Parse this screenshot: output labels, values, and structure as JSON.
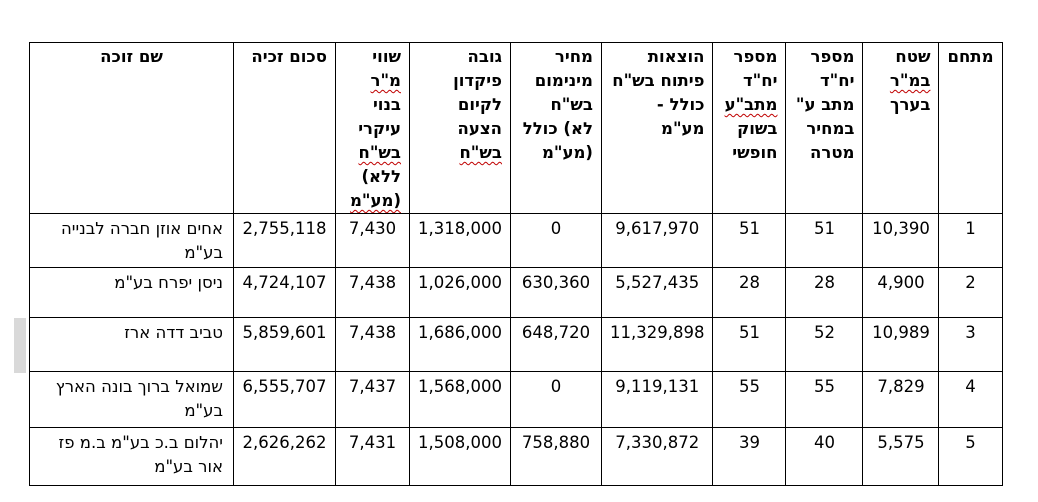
{
  "headers": {
    "area": "מתחם",
    "land_size": "שטח במ\"ר בערך",
    "units_target": "מספר יח\"ד מתב ע\" במחיר מטרה",
    "units_free": "מספר יח\"ד מתב\"ע בשוק חופשי",
    "dev_costs": "הוצאות פיתוח בש\"ח כולל - מע\"מ",
    "min_price": "מחיר מינימום בש\"ח לא) כולל (מע\"מ",
    "deposit": "גובה פיקדון לקיום הצעה בש\"ח",
    "sqm_value": "שווי מ\"ר בנוי עיקרי בש\"ח ללא) (מע\"מ",
    "win_amount": "סכום זכיה",
    "winner": "שם זוכה"
  },
  "rows": [
    {
      "area": "1",
      "land_size": "10,390",
      "units_target": "51",
      "units_free": "51",
      "dev_costs": "9,617,970",
      "min_price": "0",
      "deposit": "1,318,000",
      "sqm_value": "7,430",
      "win_amount": "2,755,118",
      "winner": "אחים אוזן חברה לבנייה בע\"מ"
    },
    {
      "area": "2",
      "land_size": "4,900",
      "units_target": "28",
      "units_free": "28",
      "dev_costs": "5,527,435",
      "min_price": "630,360",
      "deposit": "1,026,000",
      "sqm_value": "7,438",
      "win_amount": "4,724,107",
      "winner": "ניסן יפרח בע\"מ"
    },
    {
      "area": "3",
      "land_size": "10,989",
      "units_target": "52",
      "units_free": "51",
      "dev_costs": "11,329,898",
      "min_price": "648,720",
      "deposit": "1,686,000",
      "sqm_value": "7,438",
      "win_amount": "5,859,601",
      "winner": "טביב דדה ארז"
    },
    {
      "area": "4",
      "land_size": "7,829",
      "units_target": "55",
      "units_free": "55",
      "dev_costs": "9,119,131",
      "min_price": "0",
      "deposit": "1,568,000",
      "sqm_value": "7,437",
      "win_amount": "6,555,707",
      "winner": "שמואל ברוך בונה הארץ בע\"מ"
    },
    {
      "area": "5",
      "land_size": "5,575",
      "units_target": "40",
      "units_free": "39",
      "dev_costs": "7,330,872",
      "min_price": "758,880",
      "deposit": "1,508,000",
      "sqm_value": "7,431",
      "win_amount": "2,626,262",
      "winner": "יהלום ב.כ בע\"מ  ב.מ פז אור בע\"מ"
    }
  ]
}
